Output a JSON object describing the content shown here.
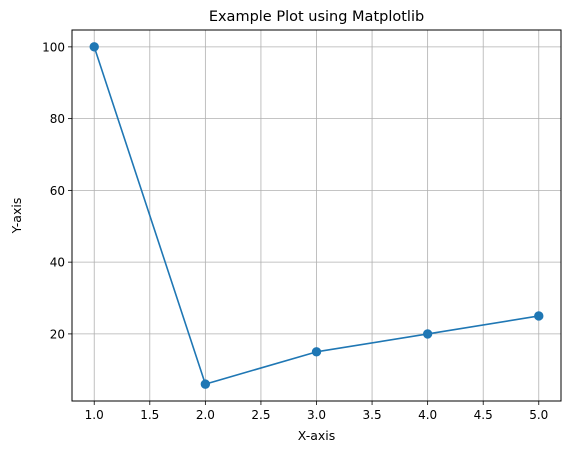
{
  "chart_data": {
    "type": "line",
    "title": "Example Plot using Matplotlib",
    "xlabel": "X-axis",
    "ylabel": "Y-axis",
    "x": [
      1,
      2,
      3,
      4,
      5
    ],
    "series": [
      {
        "values": [
          100,
          6,
          15,
          20,
          25
        ],
        "color": "#1f77b4",
        "marker": "circle"
      }
    ],
    "xlim": [
      0.8,
      5.2
    ],
    "ylim": [
      1.3,
      104.7
    ],
    "xticks": [
      1.0,
      1.5,
      2.0,
      2.5,
      3.0,
      3.5,
      4.0,
      4.5,
      5.0
    ],
    "xtick_labels": [
      "1.0",
      "1.5",
      "2.0",
      "2.5",
      "3.0",
      "3.5",
      "4.0",
      "4.5",
      "5.0"
    ],
    "yticks": [
      20,
      40,
      60,
      80,
      100
    ],
    "ytick_labels": [
      "20",
      "40",
      "60",
      "80",
      "100"
    ],
    "grid": true,
    "grid_color": "#b0b0b0",
    "legend": false
  }
}
